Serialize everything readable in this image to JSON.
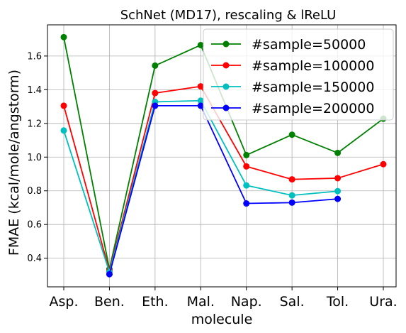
{
  "chart_data": {
    "type": "line",
    "title": "SchNet (MD17), rescaling & lReLU",
    "xlabel": "molecule",
    "ylabel": "FMAE (kcal/mole/angstorm)",
    "categories": [
      "Asp.",
      "Ben.",
      "Eth.",
      "Mal.",
      "Nap.",
      "Sal.",
      "Tol.",
      "Ura."
    ],
    "ylim": [
      0.23,
      1.785
    ],
    "yticks": [
      "0.4",
      "0.6",
      "0.8",
      "1.0",
      "1.2",
      "1.4",
      "1.6"
    ],
    "grid": true,
    "legend_position": "top-right",
    "series": [
      {
        "name": "#sample=50000",
        "color": "#008000",
        "values": [
          1.712,
          0.335,
          1.543,
          1.665,
          1.012,
          1.133,
          1.025,
          1.228
        ]
      },
      {
        "name": "#sample=100000",
        "color": "#ff0000",
        "values": [
          1.305,
          0.325,
          1.38,
          1.42,
          0.945,
          0.868,
          0.875,
          0.958
        ]
      },
      {
        "name": "#sample=150000",
        "color": "#00bfbf",
        "values": [
          1.158,
          0.318,
          1.328,
          1.335,
          0.832,
          0.773,
          0.798,
          null
        ]
      },
      {
        "name": "#sample=200000",
        "color": "#0000ff",
        "values": [
          null,
          0.305,
          1.305,
          1.305,
          0.725,
          0.73,
          0.752,
          null
        ]
      }
    ]
  }
}
